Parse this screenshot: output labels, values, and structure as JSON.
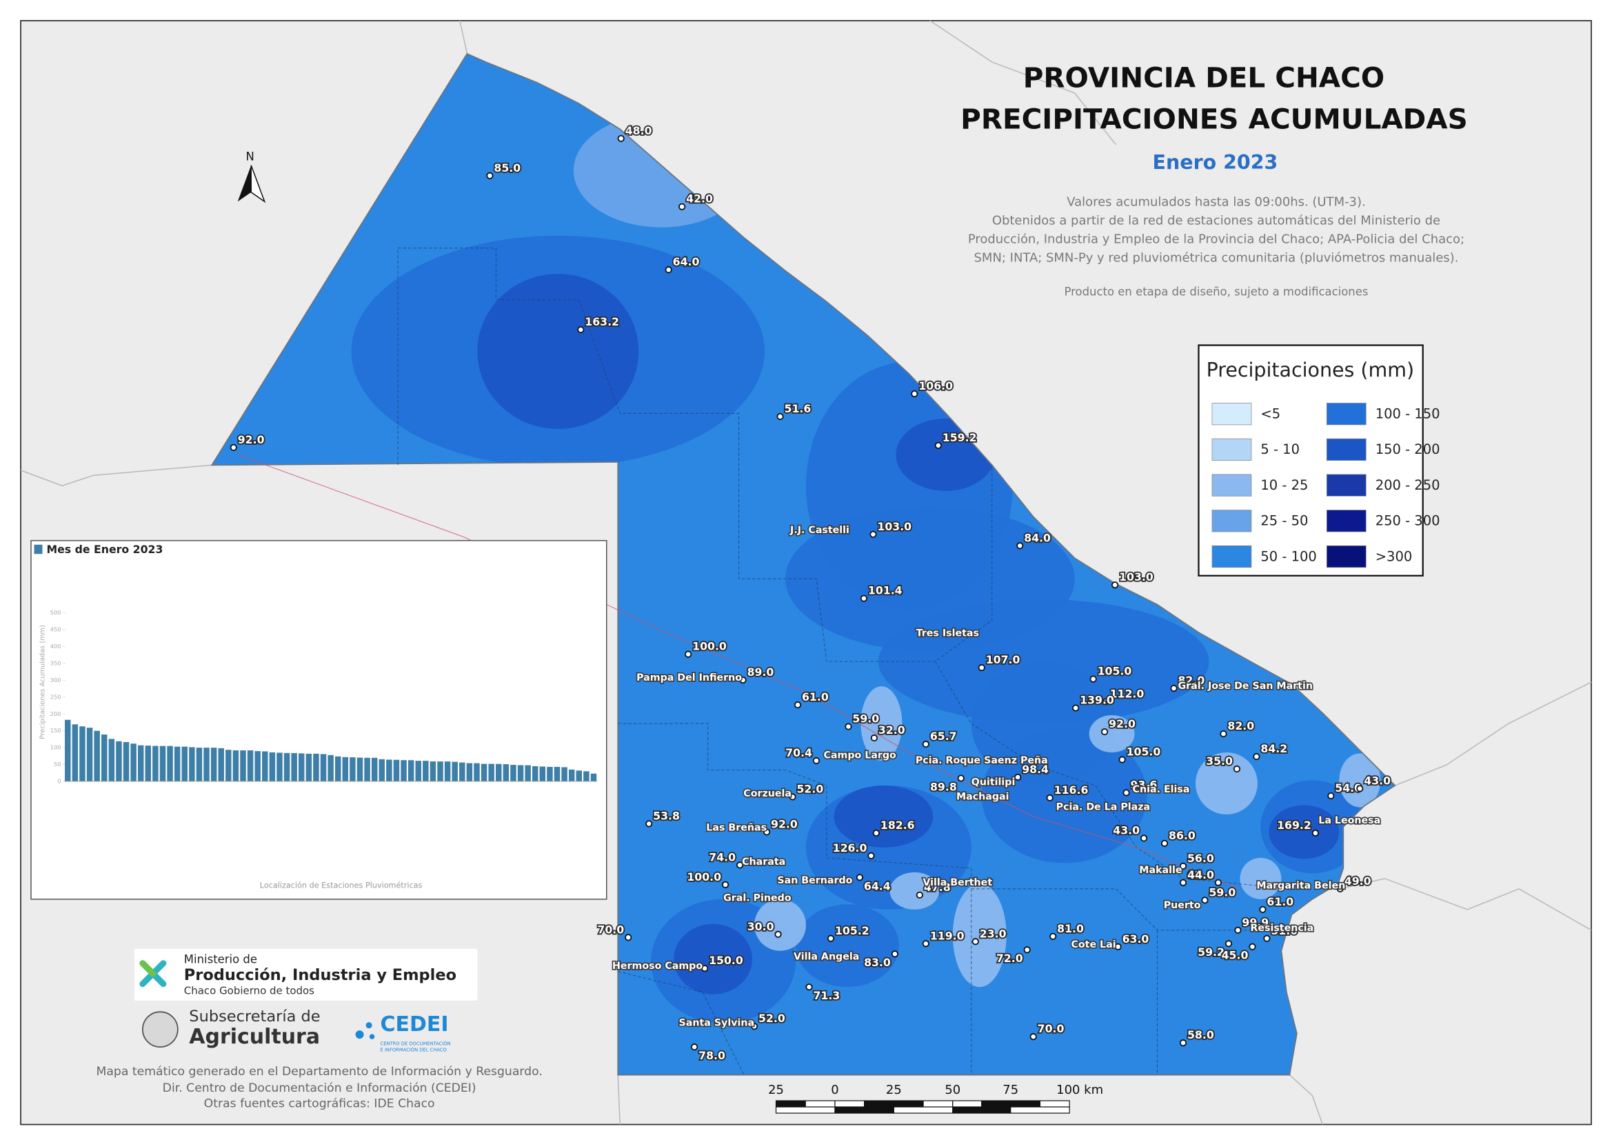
{
  "title_lines": [
    "PROVINCIA DEL CHACO",
    "PRECIPITACIONES ACUMULADAS"
  ],
  "subtitle": "Enero 2023",
  "description": [
    "Valores acumulados hasta las 09:00hs. (UTM-3).",
    "Obtenidos a partir de la red de estaciones automáticas del Ministerio de",
    "Producción, Industria y Empleo de la Provincia del Chaco; APA-Policia del Chaco;",
    "SMN; INTA; SMN-Py y red pluviométrica comunitaria (pluviómetros manuales)."
  ],
  "note": "Producto en etapa de diseño, sujeto a modificaciones",
  "north": "N",
  "legend": {
    "title": "Precipitaciones (mm)",
    "classes": [
      {
        "label": "<5",
        "color": "#d4ecfb"
      },
      {
        "label": "5 - 10",
        "color": "#b3d6f7"
      },
      {
        "label": "10 - 25",
        "color": "#8ab8ef"
      },
      {
        "label": "25 - 50",
        "color": "#68a3ea"
      },
      {
        "label": "50 - 100",
        "color": "#2b87e1"
      },
      {
        "label": "100 - 150",
        "color": "#2271d8"
      },
      {
        "label": "150 - 200",
        "color": "#1c55c6"
      },
      {
        "label": "200 - 250",
        "color": "#1b3aaa"
      },
      {
        "label": "250 - 300",
        "color": "#0d1a8f"
      },
      {
        "label": ">300",
        "color": "#08107a"
      }
    ]
  },
  "stations": [
    {
      "value": 48,
      "label": "48.0"
    },
    {
      "value": 85,
      "label": "85.0"
    },
    {
      "value": 42,
      "label": "42.0"
    },
    {
      "value": 64,
      "label": "64.0"
    },
    {
      "value": 163.2,
      "label": "163.2"
    },
    {
      "value": 92,
      "label": "92.0"
    },
    {
      "value": 106,
      "label": "106.0"
    },
    {
      "value": 51.6,
      "label": "51.6"
    },
    {
      "value": 159.2,
      "label": "159.2"
    },
    {
      "value": 103,
      "label": "103.0"
    },
    {
      "value": 84,
      "label": "84.0"
    },
    {
      "value": 103,
      "label": "103.0"
    },
    {
      "value": 101.4,
      "label": "101.4"
    },
    {
      "value": 100,
      "label": "100.0"
    },
    {
      "value": 107,
      "label": "107.0"
    },
    {
      "value": 89,
      "label": "89.0"
    },
    {
      "value": 105,
      "label": "105.0"
    },
    {
      "value": 82,
      "label": "82.0"
    },
    {
      "value": 112,
      "label": "112.0"
    },
    {
      "value": 61,
      "label": "61.0"
    },
    {
      "value": 139,
      "label": "139.0"
    },
    {
      "value": 59,
      "label": "59.0"
    },
    {
      "value": 32,
      "label": "32.0"
    },
    {
      "value": 92,
      "label": "92.0"
    },
    {
      "value": 82,
      "label": "82.0"
    },
    {
      "value": 65.7,
      "label": "65.7"
    },
    {
      "value": 105,
      "label": "105.0"
    },
    {
      "value": 70.4,
      "label": "70.4"
    },
    {
      "value": 35,
      "label": "35.0"
    },
    {
      "value": 84.2,
      "label": "84.2"
    },
    {
      "value": 89.8,
      "label": "89.8"
    },
    {
      "value": 98.4,
      "label": "98.4"
    },
    {
      "value": 116.6,
      "label": "116.6"
    },
    {
      "value": 93.6,
      "label": "93.6"
    },
    {
      "value": 52,
      "label": "52.0"
    },
    {
      "value": 54,
      "label": "54.0"
    },
    {
      "value": 43,
      "label": "43.0"
    },
    {
      "value": 53.8,
      "label": "53.8"
    },
    {
      "value": 92,
      "label": "92.0"
    },
    {
      "value": 182.6,
      "label": "182.6"
    },
    {
      "value": 169.2,
      "label": "169.2"
    },
    {
      "value": 43,
      "label": "43.0"
    },
    {
      "value": 86,
      "label": "86.0"
    },
    {
      "value": 126,
      "label": "126.0"
    },
    {
      "value": 56,
      "label": "56.0"
    },
    {
      "value": 74,
      "label": "74.0"
    },
    {
      "value": 64.4,
      "label": "64.4"
    },
    {
      "value": 62.8,
      "label": "62.8"
    },
    {
      "value": 44,
      "label": "44.0"
    },
    {
      "value": 100,
      "label": "100.0"
    },
    {
      "value": 49,
      "label": "49.0"
    },
    {
      "value": 47.8,
      "label": "47.8"
    },
    {
      "value": 59,
      "label": "59.0"
    },
    {
      "value": 61,
      "label": "61.0"
    },
    {
      "value": 70,
      "label": "70.0"
    },
    {
      "value": 30,
      "label": "30.0"
    },
    {
      "value": 105.2,
      "label": "105.2"
    },
    {
      "value": 119,
      "label": "119.0"
    },
    {
      "value": 23,
      "label": "23.0"
    },
    {
      "value": 81,
      "label": "81.0"
    },
    {
      "value": 63,
      "label": "63.0"
    },
    {
      "value": 99.9,
      "label": "99.9"
    },
    {
      "value": 51,
      "label": "51.0"
    },
    {
      "value": 72,
      "label": "72.0"
    },
    {
      "value": 83,
      "label": "83.0"
    },
    {
      "value": 59.2,
      "label": "59.2"
    },
    {
      "value": 45,
      "label": "45.0"
    },
    {
      "value": 150,
      "label": "150.0"
    },
    {
      "value": 71.3,
      "label": "71.3"
    },
    {
      "value": 52,
      "label": "52.0"
    },
    {
      "value": 70,
      "label": "70.0"
    },
    {
      "value": 58,
      "label": "58.0"
    },
    {
      "value": 78,
      "label": "78.0"
    }
  ],
  "places": [
    "J.J. Castelli",
    "Tres Isletas",
    "Pampa Del Infierno",
    "Gral. Jose De San Martin",
    "Campo Largo",
    "Pcia. Roque Saenz Peña",
    "Quitilipi",
    "Machagai",
    "Cnia. Elisa",
    "Corzuela",
    "Pcia. De La Plaza",
    "La Leonesa",
    "Las Breñas",
    "Charata",
    "Makalle",
    "Margarita Belen",
    "San Bernardo",
    "Villa Berthet",
    "Gral. Pinedo",
    "Puerto",
    "Resistencia",
    "Cote Lai",
    "Villa Angela",
    "Hermoso Campo",
    "Santa Sylvina"
  ],
  "scale_bar": [
    "25",
    "0",
    "25",
    "50",
    "75",
    "100 km"
  ],
  "inset_chart": {
    "type": "bar",
    "title": "Mes de Enero 2023",
    "ylabel": "Precipitaciones Acumuladas (mm)",
    "xlabel": "Localización de Estaciones Pluviométricas",
    "color": "#3d7fa8",
    "ylim": [
      0,
      500
    ],
    "yticks": [
      0,
      50,
      100,
      150,
      200,
      250,
      300,
      350,
      400,
      450,
      500
    ],
    "values": [
      182.6,
      169.2,
      163.2,
      159.2,
      150,
      139,
      126,
      119,
      116.6,
      112,
      107,
      106,
      105.2,
      105,
      105,
      103,
      103,
      101.4,
      100,
      100,
      99.9,
      98.4,
      93.6,
      92,
      92,
      92,
      89.8,
      89,
      86,
      85,
      84.2,
      84,
      83,
      82,
      82,
      81,
      78,
      74,
      72,
      71.3,
      70.4,
      70,
      70,
      65.7,
      64.4,
      64,
      63,
      62.8,
      61,
      61,
      59.2,
      59,
      59,
      58,
      56,
      54,
      53.8,
      52,
      52,
      51.6,
      51,
      49,
      48,
      47.8,
      45,
      44,
      43,
      43,
      42,
      35,
      32,
      30,
      23
    ]
  },
  "logos": {
    "ministerio": [
      "Ministerio de",
      "Producción, Industria y Empleo",
      "Chaco Gobierno de todos"
    ],
    "subsecretaria": [
      "Subsecretaría de",
      "Agricultura"
    ],
    "cedei": [
      "CEDEI",
      "CENTRO DE DOCUMENTACIÓN",
      "E INFORMACIÓN DEL CHACO"
    ]
  },
  "footer": [
    "Mapa temático generado en el Departamento de Información y Resguardo.",
    "Dir. Centro de Documentación e Información (CEDEI)",
    "Otras fuentes cartográficas: IDE Chaco"
  ]
}
